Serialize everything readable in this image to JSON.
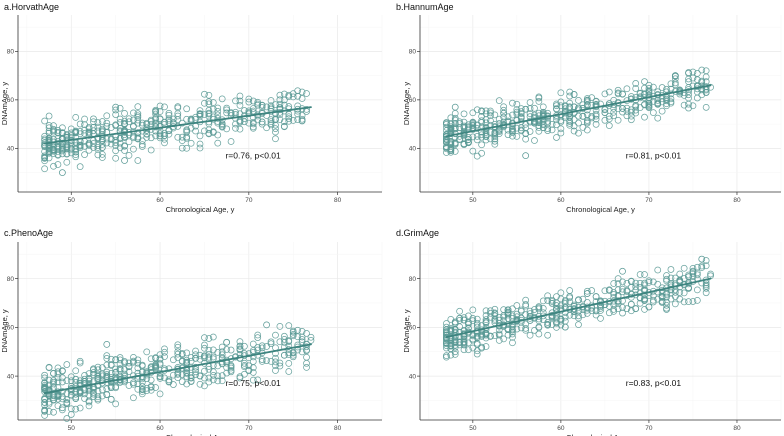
{
  "figure": {
    "point_color": "#5b9a96",
    "line_color": "#3e8580"
  },
  "chart_data": [
    {
      "type": "scatter",
      "title": "a.HorvathAge",
      "xlabel": "Chronological Age, y",
      "ylabel": "DNAmAge, y",
      "xlim": [
        44,
        85
      ],
      "ylim": [
        22,
        95
      ],
      "xticks": [
        50,
        60,
        70,
        80
      ],
      "yticks": [
        40,
        60,
        80
      ],
      "annotation": "r=0.76, p<0.01",
      "fit": {
        "x": [
          47,
          77
        ],
        "y": [
          42,
          57
        ]
      },
      "sample": {
        "x_min": 47,
        "x_max": 76.5,
        "slope": 0.5,
        "intercept": 18.5,
        "spread": 7.5,
        "n": 520,
        "seed": 11
      },
      "series": [
        {
          "name": "observations",
          "x": [
            56,
            49,
            55
          ],
          "y": [
            35,
            30,
            57
          ]
        }
      ]
    },
    {
      "type": "scatter",
      "title": "b.HannumAge",
      "xlabel": "Chronological Age, y",
      "ylabel": "DNAmAge, y",
      "xlim": [
        44,
        85
      ],
      "ylim": [
        22,
        95
      ],
      "xticks": [
        50,
        60,
        70,
        80
      ],
      "yticks": [
        40,
        60,
        80
      ],
      "annotation": "r=0.81, p<0.01",
      "fit": {
        "x": [
          47,
          77
        ],
        "y": [
          45,
          66
        ]
      },
      "sample": {
        "x_min": 47,
        "x_max": 77,
        "slope": 0.7,
        "intercept": 12.1,
        "spread": 6.5,
        "n": 540,
        "seed": 23
      },
      "series": [
        {
          "name": "observations",
          "x": [
            56,
            73,
            48
          ],
          "y": [
            37,
            70,
            57
          ]
        }
      ]
    },
    {
      "type": "scatter",
      "title": "c.PhenoAge",
      "xlabel": "Chronological Age, y",
      "ylabel": "DNAmAge, y",
      "xlim": [
        44,
        85
      ],
      "ylim": [
        22,
        95
      ],
      "xticks": [
        50,
        60,
        70,
        80
      ],
      "yticks": [
        40,
        60,
        80
      ],
      "annotation": "r=0.75, p<0.01",
      "fit": {
        "x": [
          47,
          77
        ],
        "y": [
          33,
          53
        ]
      },
      "sample": {
        "x_min": 47,
        "x_max": 77,
        "slope": 0.667,
        "intercept": 1.67,
        "spread": 8.0,
        "n": 540,
        "seed": 37
      },
      "series": [
        {
          "name": "observations",
          "x": [
            54,
            49,
            72
          ],
          "y": [
            53,
            27,
            61
          ]
        }
      ]
    },
    {
      "type": "scatter",
      "title": "d.GrimAge",
      "xlabel": "Chronological Age, y",
      "ylabel": "DNAmAge, y",
      "xlim": [
        44,
        85
      ],
      "ylim": [
        22,
        95
      ],
      "xticks": [
        50,
        60,
        70,
        80
      ],
      "yticks": [
        40,
        60,
        80
      ],
      "annotation": "r=0.83, p<0.01",
      "fit": {
        "x": [
          47,
          77
        ],
        "y": [
          56,
          80
        ]
      },
      "sample": {
        "x_min": 47,
        "x_max": 77,
        "slope": 0.8,
        "intercept": 18.4,
        "spread": 6.5,
        "n": 540,
        "seed": 53
      },
      "series": [
        {
          "name": "observations",
          "x": [
            76,
            67,
            48
          ],
          "y": [
            88,
            83,
            50
          ]
        }
      ]
    }
  ]
}
